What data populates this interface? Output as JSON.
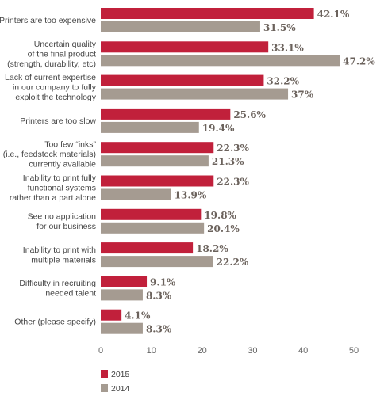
{
  "chart_data": {
    "type": "bar",
    "orientation": "horizontal",
    "categories": [
      [
        "Printers are too expensive"
      ],
      [
        "Uncertain quality",
        "of the final product",
        "(strength, durability, etc)"
      ],
      [
        "Lack of current expertise",
        "in our company to fully",
        "exploit the technology"
      ],
      [
        "Printers are too slow"
      ],
      [
        "Too few “inks”",
        "(i.e., feedstock materials)",
        "currently available"
      ],
      [
        "Inability to print fully",
        "functional systems",
        "rather than a part alone"
      ],
      [
        "See no application",
        "for our business"
      ],
      [
        "Inability to print with",
        "multiple materials"
      ],
      [
        "Difficulty in recruiting",
        "needed talent"
      ],
      [
        "Other (please specify)"
      ]
    ],
    "series": [
      {
        "name": "2015",
        "color": "#c1203b",
        "values": [
          42.1,
          33.1,
          32.2,
          25.6,
          22.3,
          22.3,
          19.8,
          18.2,
          9.1,
          4.1
        ],
        "labels": [
          "42.1%",
          "33.1%",
          "32.2%",
          "25.6%",
          "22.3%",
          "22.3%",
          "19.8%",
          "18.2%",
          "9.1%",
          "4.1%"
        ]
      },
      {
        "name": "2014",
        "color": "#a59b91",
        "values": [
          31.5,
          47.2,
          37,
          19.4,
          21.3,
          13.9,
          20.4,
          22.2,
          8.3,
          8.3
        ],
        "labels": [
          "31.5%",
          "47.2%",
          "37%",
          "19.4%",
          "21.3%",
          "13.9%",
          "20.4%",
          "22.2%",
          "8.3%",
          "8.3%"
        ]
      }
    ],
    "xticks": [
      "0",
      "10",
      "20",
      "30",
      "40",
      "50"
    ],
    "xlim": [
      0,
      50
    ],
    "title": "",
    "xlabel": "",
    "ylabel": "",
    "grid": false,
    "legend": "bottom-left"
  }
}
